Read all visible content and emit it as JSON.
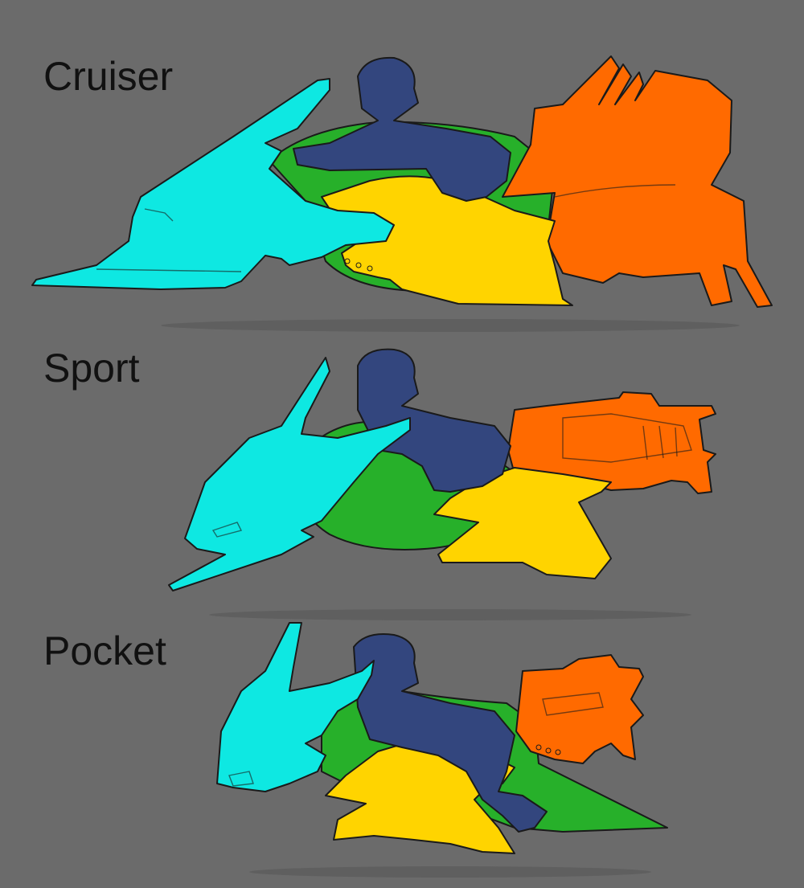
{
  "variants": [
    {
      "id": "cruiser",
      "label": "Cruiser"
    },
    {
      "id": "sport",
      "label": "Sport"
    },
    {
      "id": "pocket",
      "label": "Pocket"
    }
  ],
  "colors": {
    "background": "#6b6b6b",
    "fairing": "#0ee8e2",
    "rider": "#33467e",
    "body": "#27b02a",
    "seat": "#ffd400",
    "engine": "#ff6a00",
    "outline": "#1a1a1a",
    "label": "#111111"
  },
  "parts_legend_icons": [
    "fairing-cyan",
    "rider-navy",
    "body-green",
    "seat-yellow",
    "engine-orange"
  ]
}
